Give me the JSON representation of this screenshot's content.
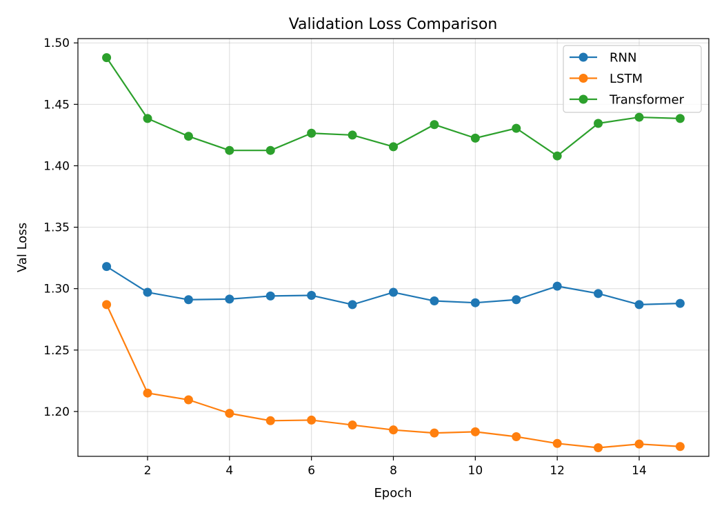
{
  "chart_data": {
    "type": "line",
    "title": "Validation Loss Comparison",
    "xlabel": "Epoch",
    "ylabel": "Val Loss",
    "xlim": [
      0.3,
      15.7
    ],
    "ylim": [
      1.1635,
      1.5035
    ],
    "xticks": [
      2,
      4,
      6,
      8,
      10,
      12,
      14
    ],
    "yticks": [
      1.2,
      1.25,
      1.3,
      1.35,
      1.4,
      1.45,
      1.5
    ],
    "ytick_labels": [
      "1.20",
      "1.25",
      "1.30",
      "1.35",
      "1.40",
      "1.45",
      "1.50"
    ],
    "grid": true,
    "legend_position": "top-right",
    "x": [
      1,
      2,
      3,
      4,
      5,
      6,
      7,
      8,
      9,
      10,
      11,
      12,
      13,
      14,
      15
    ],
    "series": [
      {
        "name": "RNN",
        "color": "#1f77b4",
        "values": [
          1.318,
          1.297,
          1.291,
          1.2915,
          1.294,
          1.2945,
          1.287,
          1.297,
          1.29,
          1.2885,
          1.291,
          1.302,
          1.296,
          1.287,
          1.288
        ]
      },
      {
        "name": "LSTM",
        "color": "#ff7f0e",
        "values": [
          1.287,
          1.215,
          1.2095,
          1.1985,
          1.1925,
          1.193,
          1.189,
          1.185,
          1.1825,
          1.1835,
          1.1795,
          1.174,
          1.1705,
          1.1735,
          1.1715
        ]
      },
      {
        "name": "Transformer",
        "color": "#2ca02c",
        "values": [
          1.488,
          1.4385,
          1.424,
          1.4125,
          1.4125,
          1.4265,
          1.425,
          1.4155,
          1.4335,
          1.4225,
          1.4305,
          1.408,
          1.4345,
          1.4395,
          1.4385
        ]
      }
    ]
  }
}
